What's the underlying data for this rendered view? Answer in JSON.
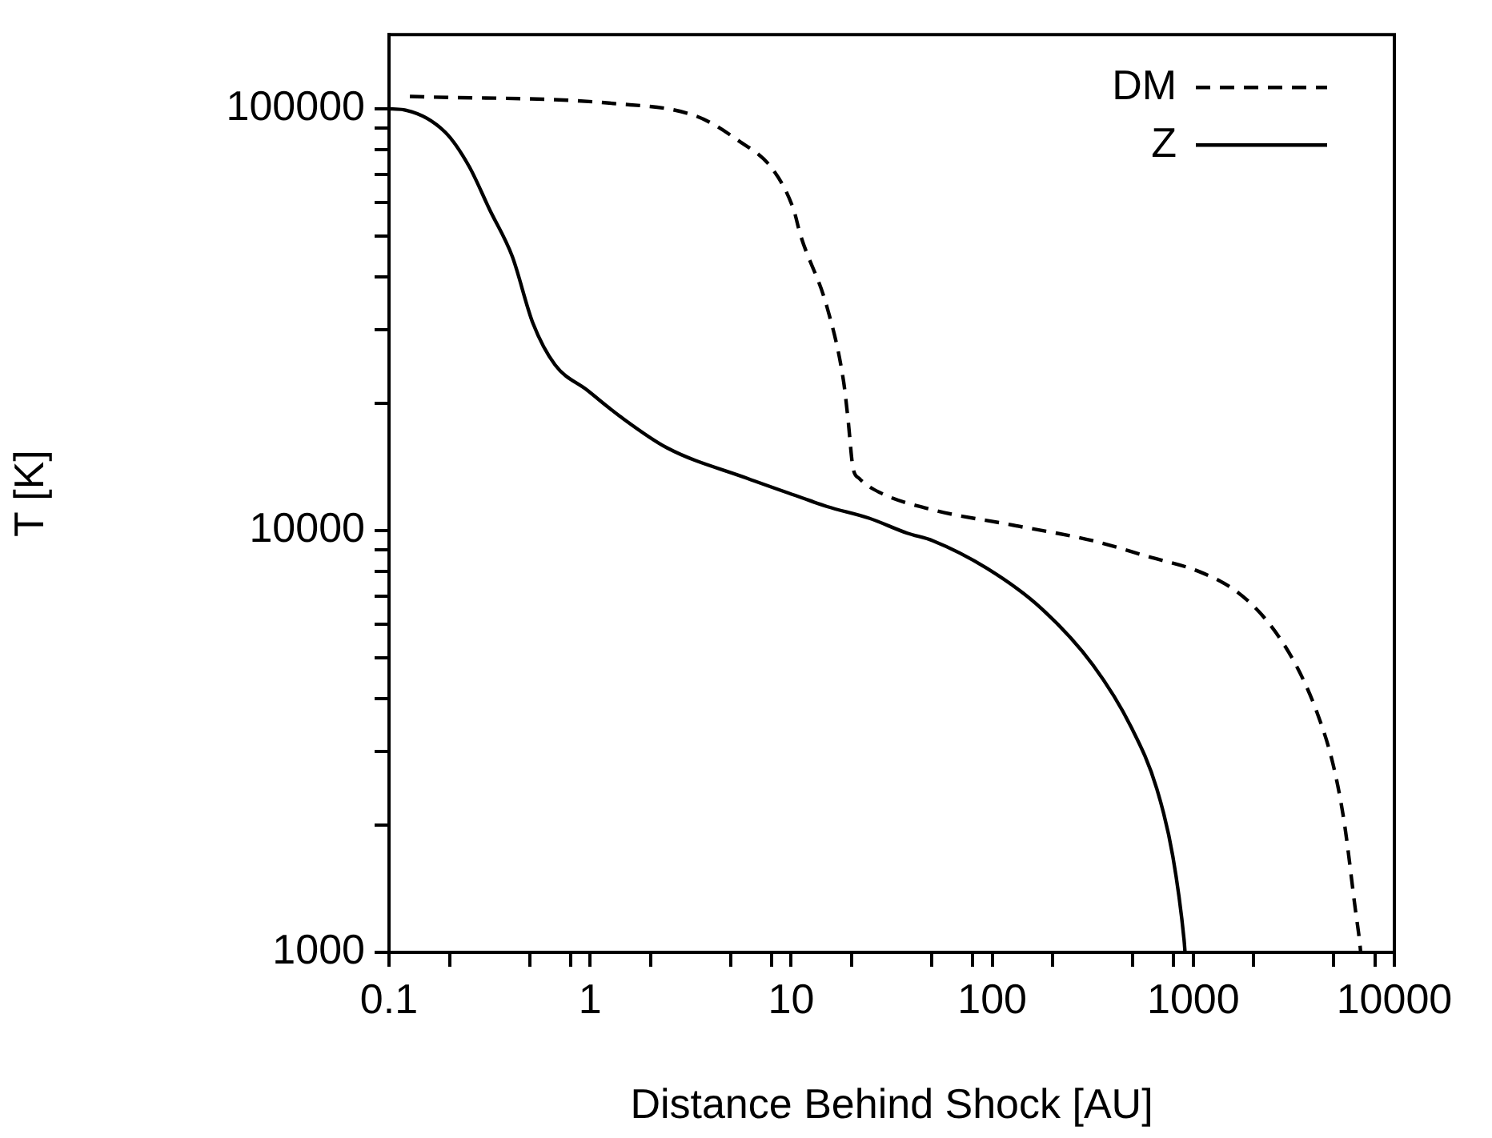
{
  "chart_data": {
    "type": "line",
    "xlabel": "Distance Behind Shock [AU]",
    "ylabel": "T [K]",
    "log": "xy",
    "legend": "top right",
    "marker": "none",
    "grid": false,
    "xlim": [
      0.1,
      10000
    ],
    "ylim": [
      1000,
      150000
    ],
    "xticks": [
      0.1,
      {
        "value": 0.2,
        "label": null
      },
      {
        "value": 0.5,
        "label": null
      },
      {
        "value": 0.8,
        "label": null
      },
      1,
      {
        "value": 2,
        "label": null
      },
      {
        "value": 5,
        "label": null
      },
      {
        "value": 8,
        "label": null
      },
      10,
      {
        "value": 20,
        "label": null
      },
      {
        "value": 50,
        "label": null
      },
      {
        "value": 80,
        "label": null
      },
      100,
      {
        "value": 200,
        "label": null
      },
      {
        "value": 500,
        "label": null
      },
      {
        "value": 800,
        "label": null
      },
      1000,
      {
        "value": 2000,
        "label": null
      },
      {
        "value": 5000,
        "label": null
      },
      {
        "value": 8000,
        "label": null
      },
      10000
    ],
    "yticks": [
      1000,
      {
        "value": 2000,
        "label": null
      },
      {
        "value": 3000,
        "label": null
      },
      {
        "value": 4000,
        "label": null
      },
      {
        "value": 5000,
        "label": null
      },
      {
        "value": 6000,
        "label": null
      },
      {
        "value": 7000,
        "label": null
      },
      {
        "value": 8000,
        "label": null
      },
      {
        "value": 9000,
        "label": null
      },
      10000,
      {
        "value": 20000,
        "label": null
      },
      {
        "value": 30000,
        "label": null
      },
      {
        "value": 40000,
        "label": null
      },
      {
        "value": 50000,
        "label": null
      },
      {
        "value": 60000,
        "label": null
      },
      {
        "value": 70000,
        "label": null
      },
      {
        "value": 80000,
        "label": null
      },
      {
        "value": 90000,
        "label": null
      },
      100000
    ],
    "series": [
      {
        "name": "DM",
        "color": "#000000",
        "line_style": "dashed",
        "x": [
          0.127,
          1.3,
          3.37,
          5.42,
          8.11,
          10.3,
          11.1,
          15.1,
          18.2,
          19.2,
          20.3,
          21.8,
          27.7,
          50.7,
          127,
          317,
          590,
          1080,
          1650,
          2370,
          3240,
          4110,
          4940,
          5620,
          6390,
          6750,
          6800
        ],
        "values": [
          107000,
          103000,
          96100,
          84300,
          71800,
          57600,
          50400,
          33800,
          22700,
          18300,
          14100,
          13300,
          12300,
          11200,
          10300,
          9460,
          8690,
          7980,
          7160,
          6040,
          4800,
          3720,
          2810,
          2050,
          1270,
          1040,
          1000
        ]
      },
      {
        "name": "Z",
        "color": "#000000",
        "line_style": "solid",
        "x": [
          0.1,
          0.118,
          0.19,
          0.25,
          0.317,
          0.41,
          0.52,
          0.67,
          0.97,
          1.4,
          2.42,
          6.05,
          11.1,
          15.1,
          24.4,
          37.8,
          50.7,
          94.5,
          173,
          317,
          491,
          659,
          791,
          900,
          910
        ],
        "values": [
          100000,
          99500,
          88100,
          73100,
          57600,
          44700,
          31000,
          24700,
          21500,
          18700,
          15700,
          13300,
          12000,
          11400,
          10700,
          9860,
          9460,
          8130,
          6580,
          4800,
          3420,
          2440,
          1690,
          1070,
          1000
        ]
      }
    ]
  }
}
